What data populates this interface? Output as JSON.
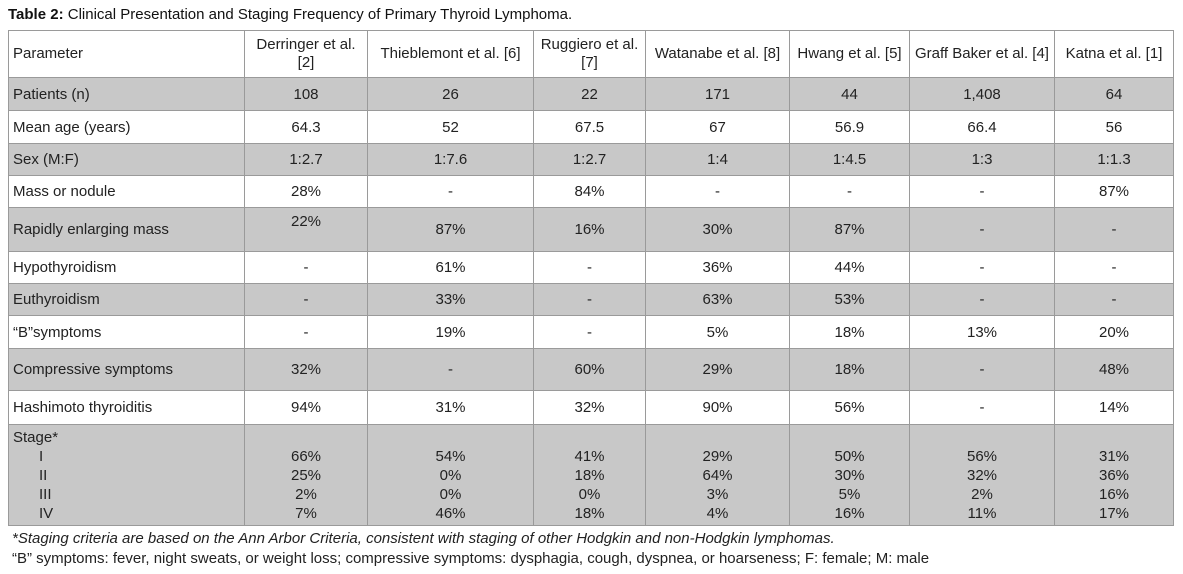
{
  "caption": {
    "label": "Table 2:",
    "text": " Clinical Presentation and Staging Frequency of Primary Thyroid Lymphoma."
  },
  "headers": [
    "Parameter",
    "Derringer et al. [2]",
    "Thieblemont et al. [6]",
    "Ruggiero et al. [7]",
    "Watanabe et al. [8]",
    "Hwang et al. [5]",
    "Graff Baker et al. [4]",
    "Katna et al. [1]"
  ],
  "rows": [
    {
      "label": "Patients (n)",
      "values": [
        "108",
        "26",
        "22",
        "171",
        "44",
        "1,408",
        "64"
      ]
    },
    {
      "label": "Mean age (years)",
      "values": [
        "64.3",
        "52",
        "67.5",
        "67",
        "56.9",
        "66.4",
        "56"
      ]
    },
    {
      "label": "Sex (M:F)",
      "values": [
        "1:2.7",
        "1:7.6",
        "1:2.7",
        "1:4",
        "1:4.5",
        "1:3",
        "1:1.3"
      ]
    },
    {
      "label": "Mass or nodule",
      "values": [
        "28%",
        "-",
        "84%",
        "-",
        "-",
        "-",
        "87%"
      ]
    },
    {
      "label": "Rapidly enlarging mass",
      "values": [
        "22%",
        "87%",
        "16%",
        "30%",
        "87%",
        "-",
        "-"
      ]
    },
    {
      "label": "Hypothyroidism",
      "values": [
        "-",
        "61%",
        "-",
        "36%",
        "44%",
        "-",
        "-"
      ]
    },
    {
      "label": "Euthyroidism",
      "values": [
        "-",
        "33%",
        "-",
        "63%",
        "53%",
        "-",
        "-"
      ]
    },
    {
      "label": "“B”symptoms",
      "values": [
        "-",
        "19%",
        "-",
        "5%",
        "18%",
        "13%",
        "20%"
      ]
    },
    {
      "label": "Compressive symptoms",
      "values": [
        "32%",
        "-",
        "60%",
        "29%",
        "18%",
        "-",
        "48%"
      ]
    },
    {
      "label": "Hashimoto thyroiditis",
      "values": [
        "94%",
        "31%",
        "32%",
        "90%",
        "56%",
        "-",
        "14%"
      ]
    }
  ],
  "stage": {
    "label": "Stage*",
    "sublabels": [
      "I",
      "II",
      "III",
      "IV"
    ],
    "values": [
      [
        "66%",
        "25%",
        "2%",
        "7%"
      ],
      [
        "54%",
        "0%",
        "0%",
        "46%"
      ],
      [
        "41%",
        "18%",
        "0%",
        "18%"
      ],
      [
        "29%",
        "64%",
        "3%",
        "4%"
      ],
      [
        "50%",
        "30%",
        "5%",
        "16%"
      ],
      [
        "56%",
        "32%",
        "2%",
        "11%"
      ],
      [
        "31%",
        "36%",
        "16%",
        "17%"
      ]
    ]
  },
  "footnotes": [
    "*Staging criteria are based on the Ann Arbor Criteria, consistent with staging of other Hodgkin and non-Hodgkin lymphomas.",
    "“B” symptoms: fever, night sweats, or weight loss; compressive symptoms: dysphagia, cough, dyspnea, or hoarseness; F: female; M: male"
  ]
}
